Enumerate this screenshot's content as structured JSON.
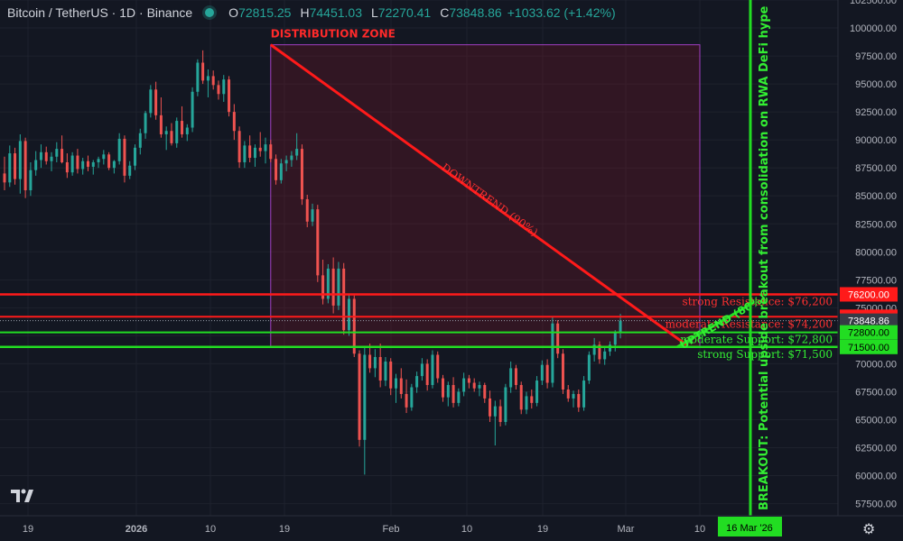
{
  "header": {
    "symbol": "Bitcoin / TetherUS · 1D · Binance",
    "open_label": "O",
    "open": "72815.25",
    "high_label": "H",
    "high": "74451.03",
    "low_label": "L",
    "low": "72270.41",
    "close_label": "C",
    "close": "73848.86",
    "change": "+1033.62 (+1.42%)"
  },
  "chart_data": {
    "type": "candlestick",
    "ylim": [
      56500,
      102500
    ],
    "y_ticks": [
      57500,
      60000,
      62500,
      65000,
      67500,
      70000,
      72500,
      75000,
      77500,
      80000,
      82500,
      85000,
      87500,
      90000,
      92500,
      95000,
      97500,
      100000,
      102500
    ],
    "y_tick_labels": [
      "57500.00",
      "60000.00",
      "62500.00",
      "65000.00",
      "67500.00",
      "70000.00",
      "72500.00",
      "75000.00",
      "77500.00",
      "80000.00",
      "82500.00",
      "85000.00",
      "87500.00",
      "90000.00",
      "92500.00",
      "95000.00",
      "97500.00",
      "100000.00",
      "102500.00"
    ],
    "x_ticks": [
      "19",
      "2026",
      "10",
      "19",
      "Feb",
      "10",
      "19",
      "Mar",
      "10"
    ],
    "crosshair_date": "16 Mar '26",
    "last_price_label": "73848.86",
    "candles": [
      [
        87000,
        88500,
        85500,
        86200
      ],
      [
        86200,
        89500,
        85800,
        88800
      ],
      [
        88800,
        89300,
        86000,
        86500
      ],
      [
        86500,
        90500,
        85200,
        89900
      ],
      [
        89900,
        90200,
        84800,
        85500
      ],
      [
        85500,
        88000,
        85000,
        87300
      ],
      [
        87300,
        89000,
        86800,
        88200
      ],
      [
        88200,
        89600,
        87500,
        88900
      ],
      [
        88900,
        89400,
        87800,
        88100
      ],
      [
        88100,
        88900,
        87200,
        88500
      ],
      [
        88500,
        89800,
        88000,
        89200
      ],
      [
        89200,
        90400,
        87900,
        88000
      ],
      [
        88000,
        88800,
        86600,
        87100
      ],
      [
        87100,
        88900,
        86800,
        88600
      ],
      [
        88600,
        89200,
        87000,
        87400
      ],
      [
        87400,
        88400,
        86900,
        88100
      ],
      [
        88100,
        88600,
        87200,
        87600
      ],
      [
        87600,
        88200,
        86900,
        88000
      ],
      [
        88000,
        88500,
        87500,
        88300
      ],
      [
        88300,
        89100,
        87800,
        88700
      ],
      [
        88700,
        88900,
        87300,
        87500
      ],
      [
        87500,
        88200,
        87000,
        88100
      ],
      [
        88100,
        90600,
        87800,
        90100
      ],
      [
        90100,
        90400,
        86200,
        86800
      ],
      [
        86800,
        88100,
        86500,
        87700
      ],
      [
        87700,
        89600,
        87300,
        89300
      ],
      [
        89300,
        91000,
        88700,
        90600
      ],
      [
        90600,
        92600,
        90100,
        92400
      ],
      [
        92400,
        94900,
        92000,
        94500
      ],
      [
        94500,
        95200,
        91800,
        92200
      ],
      [
        92200,
        93800,
        90200,
        90500
      ],
      [
        90500,
        91200,
        89100,
        90800
      ],
      [
        90800,
        91500,
        89500,
        89700
      ],
      [
        89700,
        92000,
        89300,
        91700
      ],
      [
        91700,
        93000,
        90200,
        90500
      ],
      [
        90500,
        91400,
        89900,
        91100
      ],
      [
        91100,
        94700,
        90700,
        94300
      ],
      [
        94300,
        97200,
        93900,
        96900
      ],
      [
        96900,
        98000,
        95000,
        95300
      ],
      [
        95300,
        96300,
        93800,
        95700
      ],
      [
        95700,
        96200,
        94500,
        94900
      ],
      [
        94900,
        95300,
        93600,
        94100
      ],
      [
        94100,
        95800,
        93400,
        95400
      ],
      [
        95400,
        95700,
        92100,
        92500
      ],
      [
        92500,
        93200,
        90000,
        90800
      ],
      [
        90800,
        91200,
        87500,
        88000
      ],
      [
        88000,
        89900,
        87500,
        89500
      ],
      [
        89500,
        90400,
        88000,
        88400
      ],
      [
        88400,
        89600,
        87600,
        89300
      ],
      [
        89300,
        90700,
        88500,
        89000
      ],
      [
        89000,
        90200,
        87900,
        89600
      ],
      [
        89600,
        90000,
        88000,
        88300
      ],
      [
        88300,
        88700,
        86000,
        86400
      ],
      [
        86400,
        88300,
        86100,
        87900
      ],
      [
        87900,
        88600,
        87200,
        88200
      ],
      [
        88200,
        89000,
        87600,
        88600
      ],
      [
        88600,
        90600,
        88200,
        89200
      ],
      [
        89200,
        89600,
        84200,
        84700
      ],
      [
        84700,
        85100,
        82200,
        82700
      ],
      [
        82700,
        84300,
        82300,
        83800
      ],
      [
        83800,
        84200,
        77300,
        77900
      ],
      [
        77900,
        79300,
        75300,
        75800
      ],
      [
        75800,
        78900,
        75400,
        78500
      ],
      [
        78500,
        79500,
        74500,
        75200
      ],
      [
        75200,
        79100,
        74800,
        78500
      ],
      [
        78500,
        79000,
        72600,
        73000
      ],
      [
        73000,
        76200,
        72500,
        75800
      ],
      [
        75800,
        76100,
        70600,
        70900
      ],
      [
        70900,
        71200,
        62600,
        63200
      ],
      [
        63200,
        71500,
        60100,
        70800
      ],
      [
        70800,
        71800,
        69200,
        69600
      ],
      [
        69600,
        71300,
        68800,
        70600
      ],
      [
        70600,
        71800,
        67900,
        68500
      ],
      [
        68500,
        70600,
        68000,
        70200
      ],
      [
        70200,
        70500,
        67200,
        67800
      ],
      [
        67800,
        69100,
        66500,
        68700
      ],
      [
        68700,
        69600,
        66900,
        67300
      ],
      [
        67300,
        68600,
        65600,
        66100
      ],
      [
        66100,
        68200,
        65800,
        67900
      ],
      [
        67900,
        69300,
        67400,
        68900
      ],
      [
        68900,
        70500,
        68500,
        70000
      ],
      [
        70000,
        70400,
        67600,
        68100
      ],
      [
        68100,
        71200,
        67800,
        70800
      ],
      [
        70800,
        71100,
        68300,
        68700
      ],
      [
        68700,
        69000,
        66600,
        67000
      ],
      [
        67000,
        68400,
        66200,
        68100
      ],
      [
        68100,
        68800,
        66100,
        66500
      ],
      [
        66500,
        67800,
        66200,
        67500
      ],
      [
        67500,
        69200,
        67100,
        68700
      ],
      [
        68700,
        69000,
        67800,
        68300
      ],
      [
        68300,
        68700,
        67500,
        67800
      ],
      [
        67800,
        68400,
        67100,
        68100
      ],
      [
        68100,
        68300,
        66500,
        66900
      ],
      [
        66900,
        67600,
        64800,
        65300
      ],
      [
        65300,
        66700,
        62700,
        66200
      ],
      [
        66200,
        66800,
        64400,
        64800
      ],
      [
        64800,
        68200,
        64500,
        67900
      ],
      [
        67900,
        70200,
        67400,
        69600
      ],
      [
        69600,
        69900,
        67700,
        68100
      ],
      [
        68100,
        68400,
        65500,
        65900
      ],
      [
        65900,
        67500,
        65500,
        67100
      ],
      [
        67100,
        67700,
        66000,
        66500
      ],
      [
        66500,
        68900,
        66200,
        68500
      ],
      [
        68500,
        70300,
        68100,
        69900
      ],
      [
        69900,
        70400,
        67800,
        68300
      ],
      [
        68300,
        74200,
        67900,
        73600
      ],
      [
        73600,
        73900,
        70500,
        70900
      ],
      [
        70900,
        71300,
        67300,
        67700
      ],
      [
        67700,
        68100,
        66600,
        66900
      ],
      [
        66900,
        67600,
        66100,
        67300
      ],
      [
        67300,
        67700,
        65700,
        66100
      ],
      [
        66100,
        68900,
        65800,
        68500
      ],
      [
        68500,
        71100,
        68200,
        70800
      ],
      [
        70800,
        72300,
        70200,
        71700
      ],
      [
        71700,
        72000,
        70000,
        70400
      ],
      [
        70400,
        71500,
        69900,
        71100
      ],
      [
        71100,
        72000,
        70700,
        71700
      ],
      [
        71700,
        73000,
        71100,
        72815
      ],
      [
        72815,
        74451,
        72270,
        73849
      ]
    ],
    "annotations": {
      "distribution_zone": "DISTRIBUTION ZONE",
      "downtrend": "DOWNTREND (90%)",
      "uptrend": "UPTREND (80%)",
      "breakout": "BREAKOUT: Potential upside breakout from consolidation on RWA DeFi hype",
      "strong_resistance": "strong Resistance: $76,200",
      "moderate_resistance": "moderate Resistance: $74,200",
      "moderate_support": "moderate Support: $72,800",
      "strong_support": "strong Support: $71,500"
    },
    "levels": [
      {
        "name": "strong_resistance",
        "value": 76200,
        "label": "76200.00",
        "color": "#ff1a1a"
      },
      {
        "name": "moderate_resistance",
        "value": 74200,
        "label": "74200.00",
        "color": "#ff1a1a"
      },
      {
        "name": "moderate_support",
        "value": 72800,
        "label": "72800.00",
        "color": "#22dd22"
      },
      {
        "name": "strong_support",
        "value": 71500,
        "label": "71500.00",
        "color": "#22dd22"
      }
    ],
    "colors": {
      "up": "#26a69a",
      "down": "#ef5350",
      "background": "#131722",
      "grid": "#1e222d",
      "resistance": "#ff1a1a",
      "support": "#22dd22",
      "zone": "#9c27b0"
    }
  }
}
